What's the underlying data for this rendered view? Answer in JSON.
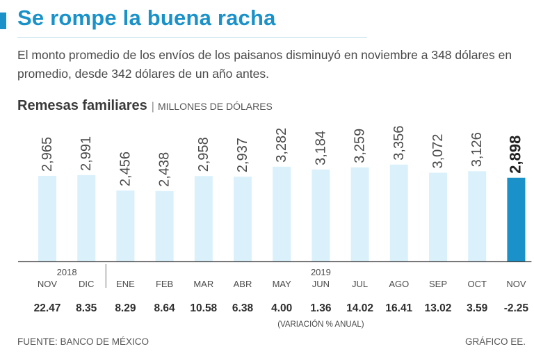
{
  "header": {
    "title": "Se rompe la buena racha",
    "subtitle": "El monto promedio de los envíos de los paisanos disminuyó en noviembre a 348 dólares en promedio, desde 342 dólares de un año antes."
  },
  "chart_heading": {
    "title": "Remesas familiares",
    "separator": "|",
    "units": "MILLONES DE DÓLARES"
  },
  "chart_data": {
    "type": "bar",
    "title": "Remesas familiares",
    "ylabel": "MILLONES DE DÓLARES",
    "categories": [
      "NOV",
      "DIC",
      "ENE",
      "FEB",
      "MAR",
      "ABR",
      "MAY",
      "JUN",
      "JUL",
      "AGO",
      "SEP",
      "OCT",
      "NOV"
    ],
    "values": [
      2965,
      2991,
      2456,
      2438,
      2958,
      2937,
      3282,
      3184,
      3259,
      3356,
      3072,
      3126,
      2898
    ],
    "value_labels": [
      "2,965",
      "2,991",
      "2,456",
      "2,438",
      "2,958",
      "2,937",
      "3,282",
      "3,184",
      "3,259",
      "3,356",
      "3,072",
      "3,126",
      "2,898"
    ],
    "year_labels": [
      "2018",
      "2019"
    ],
    "annual_change": [
      "22.47",
      "8.35",
      "8.29",
      "8.64",
      "10.58",
      "6.38",
      "4.00",
      "1.36",
      "14.02",
      "16.41",
      "13.02",
      "3.59",
      "-2.25"
    ],
    "annual_change_label": "(VARIACIÓN % ANUAL)",
    "highlight_index": 12,
    "ylim": [
      0,
      4000
    ],
    "grid": false,
    "colors": {
      "bar": "#daf1fb",
      "highlight": "#1a92c9",
      "axis": "#444444"
    }
  },
  "footer": {
    "source": "FUENTE: BANCO DE MÉXICO",
    "credit": "GRÁFICO EE."
  }
}
